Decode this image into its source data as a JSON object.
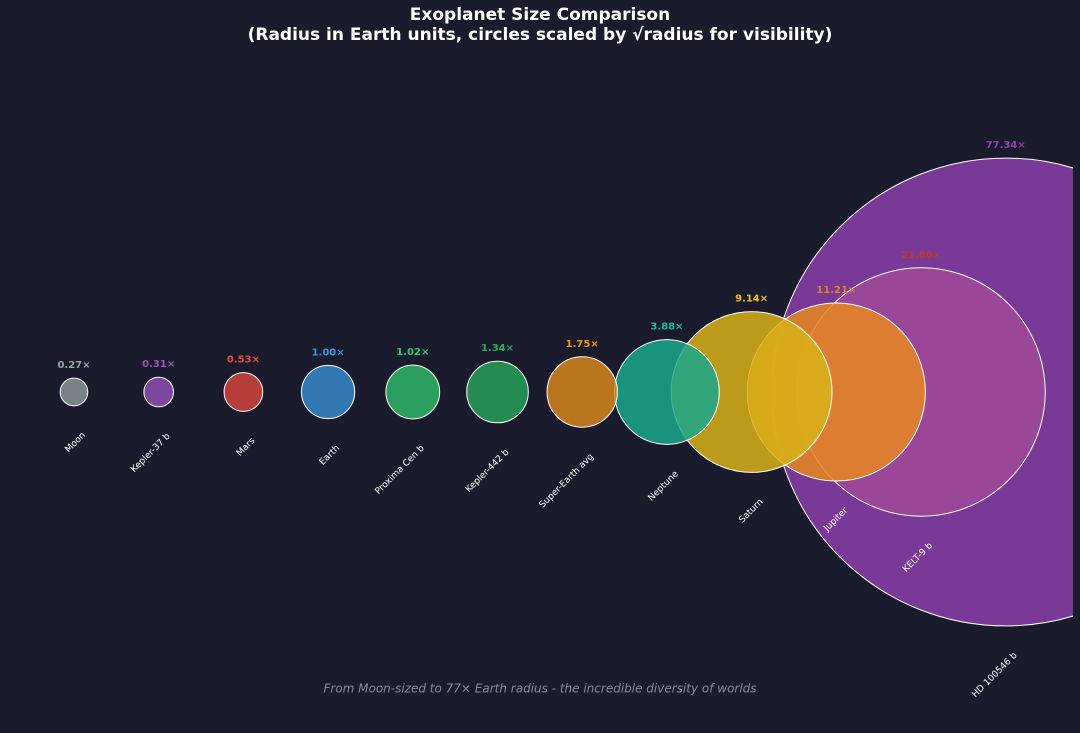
{
  "chart_data": {
    "type": "size-comparison",
    "title": "Exoplanet Size Comparison",
    "subtitle": "(Radius in Earth units, circles scaled by √radius for visibility)",
    "note": "From Moon-sized to 77× Earth radius - the incredible diversity of worlds",
    "categories": [
      "Moon",
      "Kepler-37 b",
      "Mars",
      "Earth",
      "Proxima Cen b",
      "Kepler-442 b",
      "Super-Earth avg",
      "Neptune",
      "Saturn",
      "Jupiter",
      "KELT-9 b",
      "HD 100546 b"
    ],
    "values": [
      0.27,
      0.31,
      0.53,
      1.0,
      1.02,
      1.34,
      1.75,
      3.88,
      9.14,
      11.21,
      21.8,
      77.34
    ],
    "value_labels": [
      "0.27×",
      "0.31×",
      "0.53×",
      "1.00×",
      "1.02×",
      "1.34×",
      "1.75×",
      "3.88×",
      "9.14×",
      "11.21×",
      "21.80×",
      "77.34×"
    ],
    "colors": [
      "#8a9496",
      "#8e4fb0",
      "#d2433a",
      "#3288c8",
      "#2eb766",
      "#26a057",
      "#d6861a",
      "#1aa88c",
      "#d8b117",
      "#e8871e",
      "#a04a9a",
      "#8a3ea8"
    ],
    "label_colors": [
      "#95a5a6",
      "#9b59b6",
      "#e74c3c",
      "#3498db",
      "#2ecc71",
      "#27ae60",
      "#f39c12",
      "#1abc9c",
      "#f1c40f",
      "#e67e22",
      "#c0392b",
      "#8e44ad"
    ]
  }
}
